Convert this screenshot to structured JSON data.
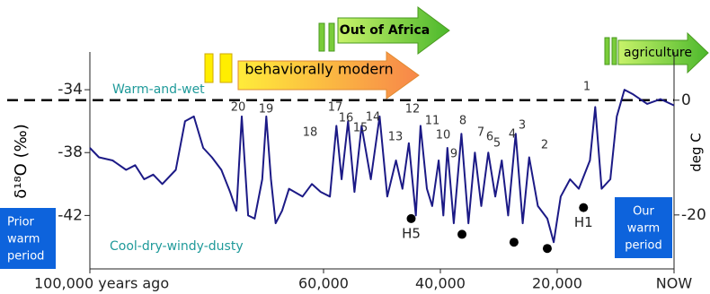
{
  "chart_data": {
    "type": "line",
    "y_label": "δ¹⁸O (‰)",
    "y2_label": "deg C",
    "x": [
      100000,
      98450,
      96100,
      93800,
      92250,
      90700,
      89150,
      87600,
      85300,
      83700,
      82200,
      80600,
      79100,
      77500,
      76000,
      74900,
      74000,
      72900,
      71800,
      70500,
      69800,
      69000,
      68200,
      67100,
      65900,
      63600,
      62000,
      60500,
      58900,
      57800,
      56900,
      55800,
      54700,
      53500,
      51900,
      50400,
      49100,
      47600,
      46500,
      45400,
      44200,
      43400,
      42300,
      41400,
      40300,
      39500,
      38800,
      37700,
      36400,
      35200,
      34100,
      33000,
      31800,
      30600,
      29500,
      28400,
      27100,
      25900,
      24800,
      23300,
      21700,
      20600,
      19400,
      17800,
      16300,
      14400,
      13500,
      12400,
      10900,
      9800,
      8500,
      7000,
      4600,
      2300,
      0
    ],
    "series": [
      {
        "color": "#1c1a86",
        "values": [
          -37.7,
          -38.3,
          -38.5,
          -39.1,
          -38.8,
          -39.7,
          -39.4,
          -40.0,
          -39.1,
          -36.0,
          -35.7,
          -37.7,
          -38.3,
          -39.1,
          -40.5,
          -41.7,
          -35.7,
          -42.0,
          -42.2,
          -39.7,
          -35.7,
          -39.7,
          -42.5,
          -41.7,
          -40.3,
          -40.8,
          -40.0,
          -40.5,
          -40.8,
          -36.3,
          -39.7,
          -36.0,
          -40.5,
          -36.3,
          -39.7,
          -35.7,
          -40.8,
          -38.5,
          -40.3,
          -37.4,
          -42.0,
          -36.3,
          -40.3,
          -41.4,
          -38.5,
          -42.0,
          -37.7,
          -42.5,
          -36.8,
          -42.5,
          -38.0,
          -41.4,
          -38.0,
          -40.8,
          -38.5,
          -42.0,
          -36.8,
          -42.5,
          -38.3,
          -41.4,
          -42.2,
          -43.7,
          -40.8,
          -39.7,
          -40.3,
          -38.5,
          -35.1,
          -40.3,
          -39.7,
          -35.7,
          -34.0,
          -34.3,
          -34.9,
          -34.6,
          -35.0
        ]
      }
    ],
    "heinrich_events": {
      "x": [
        45000,
        36300,
        27400,
        21700,
        15500
      ],
      "values": [
        -42.2,
        -43.2,
        -43.7,
        -44.1,
        -41.5
      ],
      "labels": [
        "H5",
        null,
        null,
        null,
        "H1"
      ]
    },
    "xlim": [
      100000,
      0
    ],
    "xticks": [
      {
        "value": 100000,
        "label": "100,000 years ago"
      },
      {
        "value": 60000,
        "label": "60,000"
      },
      {
        "value": 40000,
        "label": "40,000"
      },
      {
        "value": 20000,
        "label": "20,000"
      },
      {
        "value": 0,
        "label": "NOW"
      }
    ],
    "ylim": [
      -45.4,
      -31.6
    ],
    "yticks": [
      -34,
      -38,
      -42
    ],
    "y2lim": [
      -29.4,
      8.4
    ],
    "y2ticks": [
      0,
      -20
    ],
    "reference_line": {
      "axis": "y2",
      "value": 0,
      "style": "dashed"
    },
    "event_labels": [
      "20",
      "19",
      "18",
      "17",
      "16",
      "15",
      "14",
      "13",
      "12",
      "11",
      "10",
      "9",
      "8",
      "7",
      "6",
      "5",
      "4",
      "3",
      "2",
      "1"
    ],
    "annotations": [
      "Warm-and-wet",
      "Cool-dry-windy-dusty"
    ],
    "arrows": [
      "behaviorally modern",
      "Out of Africa",
      "agriculture"
    ],
    "boxes": [
      [
        "Prior",
        "warm",
        "period"
      ],
      [
        "Our",
        "warm",
        "period"
      ]
    ]
  }
}
